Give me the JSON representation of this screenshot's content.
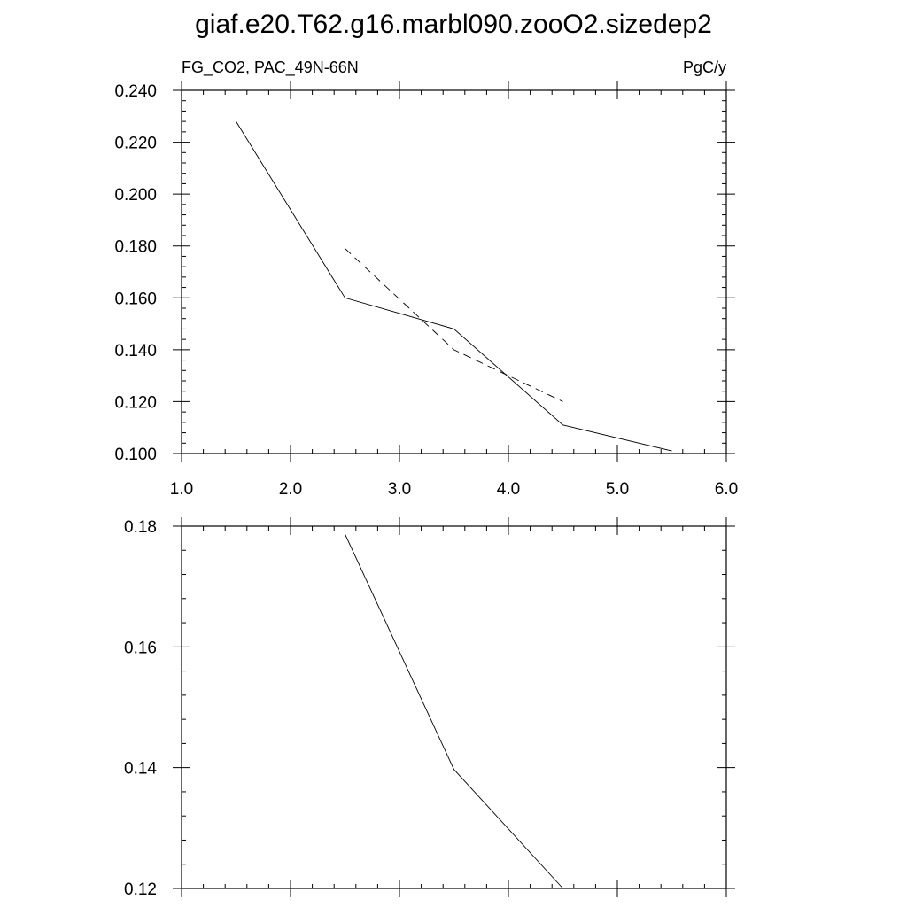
{
  "page": {
    "title": "giaf.e20.T62.g16.marbl090.zooO2.sizedep2"
  },
  "chart_data": [
    {
      "type": "line",
      "left_label": "FG_CO2, PAC_49N-66N",
      "right_label": "PgC/y",
      "xlim": [
        1.0,
        6.0
      ],
      "ylim": [
        0.1,
        0.24
      ],
      "x_ticks": [
        1.0,
        2.0,
        3.0,
        4.0,
        5.0,
        6.0
      ],
      "x_tick_labels": [
        "1.0",
        "2.0",
        "3.0",
        "4.0",
        "5.0",
        "6.0"
      ],
      "y_ticks": [
        0.1,
        0.12,
        0.14,
        0.16,
        0.18,
        0.2,
        0.22,
        0.24
      ],
      "y_tick_labels": [
        "0.100",
        "0.120",
        "0.140",
        "0.160",
        "0.180",
        "0.200",
        "0.220",
        "0.240"
      ],
      "grid": false,
      "series": [
        {
          "style": "solid",
          "x": [
            1.5,
            2.5,
            3.5,
            4.5,
            5.5
          ],
          "y": [
            0.228,
            0.16,
            0.148,
            0.111,
            0.101
          ]
        },
        {
          "style": "dashed",
          "x": [
            2.5,
            3.5,
            4.5
          ],
          "y": [
            0.179,
            0.14,
            0.12
          ]
        }
      ]
    },
    {
      "type": "line",
      "xlim": [
        1.0,
        6.0
      ],
      "ylim": [
        0.12,
        0.18
      ],
      "x_ticks": [
        1.0,
        2.0,
        3.0,
        4.0,
        5.0,
        6.0
      ],
      "y_ticks": [
        0.12,
        0.14,
        0.16,
        0.18
      ],
      "y_tick_labels": [
        "0.12",
        "0.14",
        "0.16",
        "0.18"
      ],
      "grid": false,
      "series": [
        {
          "style": "solid",
          "x": [
            2.5,
            3.5,
            4.5
          ],
          "y": [
            0.1787,
            0.1397,
            0.12
          ]
        }
      ]
    }
  ]
}
